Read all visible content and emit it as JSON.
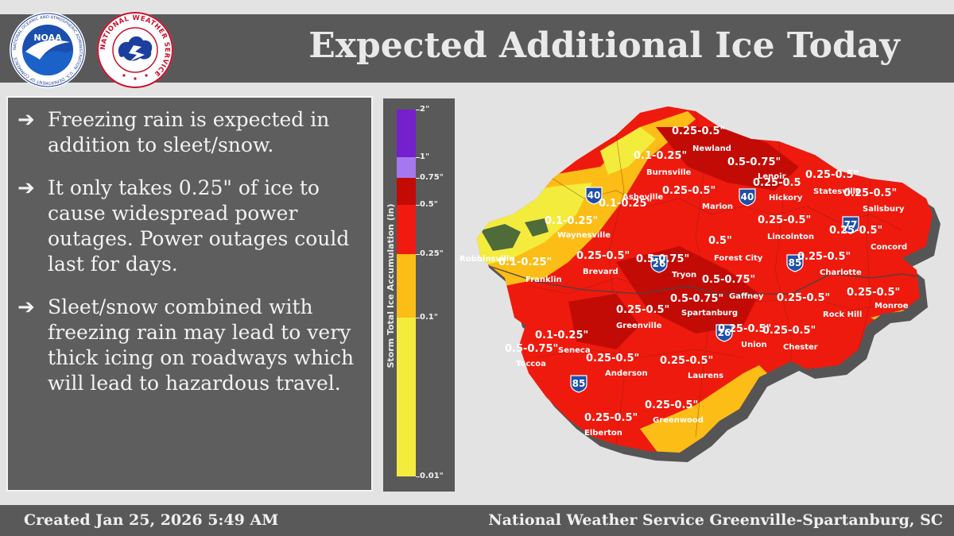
{
  "header": {
    "title": "Expected Additional Ice Today"
  },
  "logos": {
    "noaa": {
      "name": "NOAA",
      "ring_text": "NATIONAL OCEANIC AND ATMOSPHERIC ADMINISTRATION · U.S. DEPARTMENT OF COMMERCE"
    },
    "nws": {
      "ring_text": "NATIONAL WEATHER SERVICE"
    }
  },
  "bullets": [
    {
      "text": "Freezing rain is expected in addition to sleet/snow."
    },
    {
      "text": "It only takes 0.25\" of ice to cause widespread power outages. Power outages could last for days."
    },
    {
      "text": "Sleet/snow combined with freezing rain may lead to very thick icing on roadways which will lead to hazardous travel."
    }
  ],
  "legend": {
    "title": "Storm Total Ice Accumulation (in)",
    "ticks": [
      "2\"",
      "1\"",
      "0.75\"",
      "0.5\"",
      "0.25\"",
      "0.1\"",
      "0.01\""
    ],
    "tick_values": [
      2,
      1,
      0.75,
      0.5,
      0.25,
      0.1,
      0.01
    ],
    "colors": {
      "0.01-0.1": "#f3ec3d",
      "0.1-0.25": "#fbbd16",
      "0.25-0.5": "#f11a0f",
      "0.5-0.75": "#c30b06",
      "0.75-1": "#a678f0",
      "1-2": "#7420cc"
    }
  },
  "map": {
    "cities": [
      "Newland",
      "Burnsville",
      "Lenoir",
      "Hickory",
      "Statesville",
      "Salisbury",
      "Marion",
      "Asheville",
      "Waynesville",
      "Robbinsville",
      "Franklin",
      "Brevard",
      "Forest City",
      "Lincolnton",
      "Concord",
      "Charlotte",
      "Tryon",
      "Gaffney",
      "Spartanburg",
      "Greenville",
      "Rock Hill",
      "Monroe",
      "Seneca",
      "Toccoa",
      "Anderson",
      "Union",
      "Chester",
      "Laurens",
      "Greenwood",
      "Elberton"
    ],
    "amounts": [
      "0.25-0.5\"",
      "0.1-0.25\"",
      "0.5-0.75\"",
      "0.25-0.5",
      "0.25-0.5\"",
      "0.25-0.5\"",
      "0.1-0.25\"",
      "0.25-0.5\"",
      "0.25-0.5\"",
      "0.1-0.25\"",
      "0.25-0.5\"",
      "0.5\"",
      "0.25-0.5\"",
      "0.1-0.25\"",
      "0.25-0.5\"",
      "0.25-0.5\"",
      "0.5-0.75\"",
      "0.25-0.5\"",
      "0.5-0.75\"",
      "0.5-0.75\"",
      "0.25-0.5\"",
      "0.1-0.25\"",
      "0.5-0.75\"",
      "0.25-0.5\"",
      "0.25-0.5\"",
      "0.25-0.5\"",
      "0.25-0.5\"",
      "0.25-0.5\"",
      "0.25-0.5\"",
      "0.25-0.5\"",
      "0.1-0.25\"",
      "0.25\""
    ],
    "interstates": [
      "40",
      "40",
      "26",
      "85",
      "77",
      "85",
      "26"
    ]
  },
  "footer": {
    "created": "Created Jan 25, 2026 5:49 AM",
    "office": "National Weather Service Greenville-Spartanburg, SC"
  }
}
